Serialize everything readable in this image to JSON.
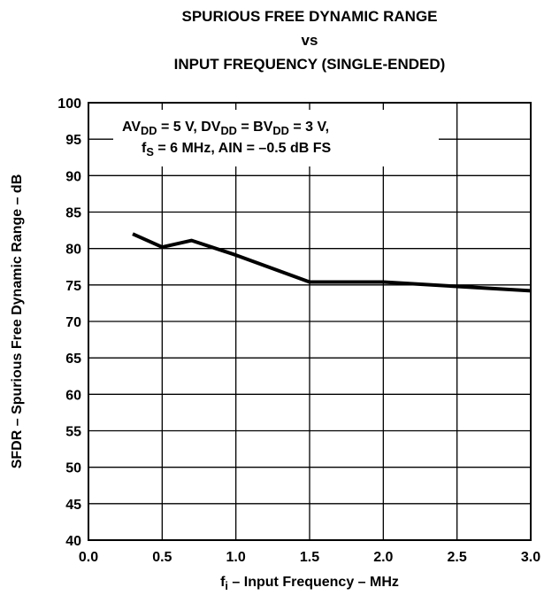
{
  "chart_data": {
    "type": "line",
    "title": [
      "SPURIOUS FREE DYNAMIC RANGE",
      "vs",
      "INPUT FREQUENCY (SINGLE-ENDED)"
    ],
    "annotation": [
      [
        "AV",
        "DD",
        " = 5 V, DV",
        "DD",
        " = BV",
        "DD",
        " = 3 V,"
      ],
      [
        "f",
        "S",
        " = 6 MHz, AIN = –0.5 dB FS"
      ]
    ],
    "xlabel": [
      "f",
      "i",
      " – Input Frequency – MHz"
    ],
    "ylabel": "SFDR – Spurious Free Dynamic Range – dB",
    "x": [
      0.3,
      0.5,
      0.7,
      1.0,
      1.5,
      2.0,
      2.5,
      3.0
    ],
    "series": [
      {
        "color": "#000000",
        "values": [
          82,
          80.2,
          81.1,
          79.1,
          75.4,
          75.4,
          74.8,
          74.2
        ]
      }
    ],
    "xlim": [
      0,
      3
    ],
    "ylim": [
      40,
      100
    ],
    "xticks": [
      {
        "value": 0,
        "label": "0.0"
      },
      0.5,
      {
        "value": 1,
        "label": "1.0"
      },
      1.5,
      {
        "value": 2,
        "label": "2.0"
      },
      2.5,
      {
        "value": 3,
        "label": "3.0"
      }
    ],
    "yticks": [
      40,
      45,
      50,
      55,
      60,
      65,
      70,
      75,
      80,
      85,
      90,
      95,
      100
    ],
    "grid": true
  }
}
